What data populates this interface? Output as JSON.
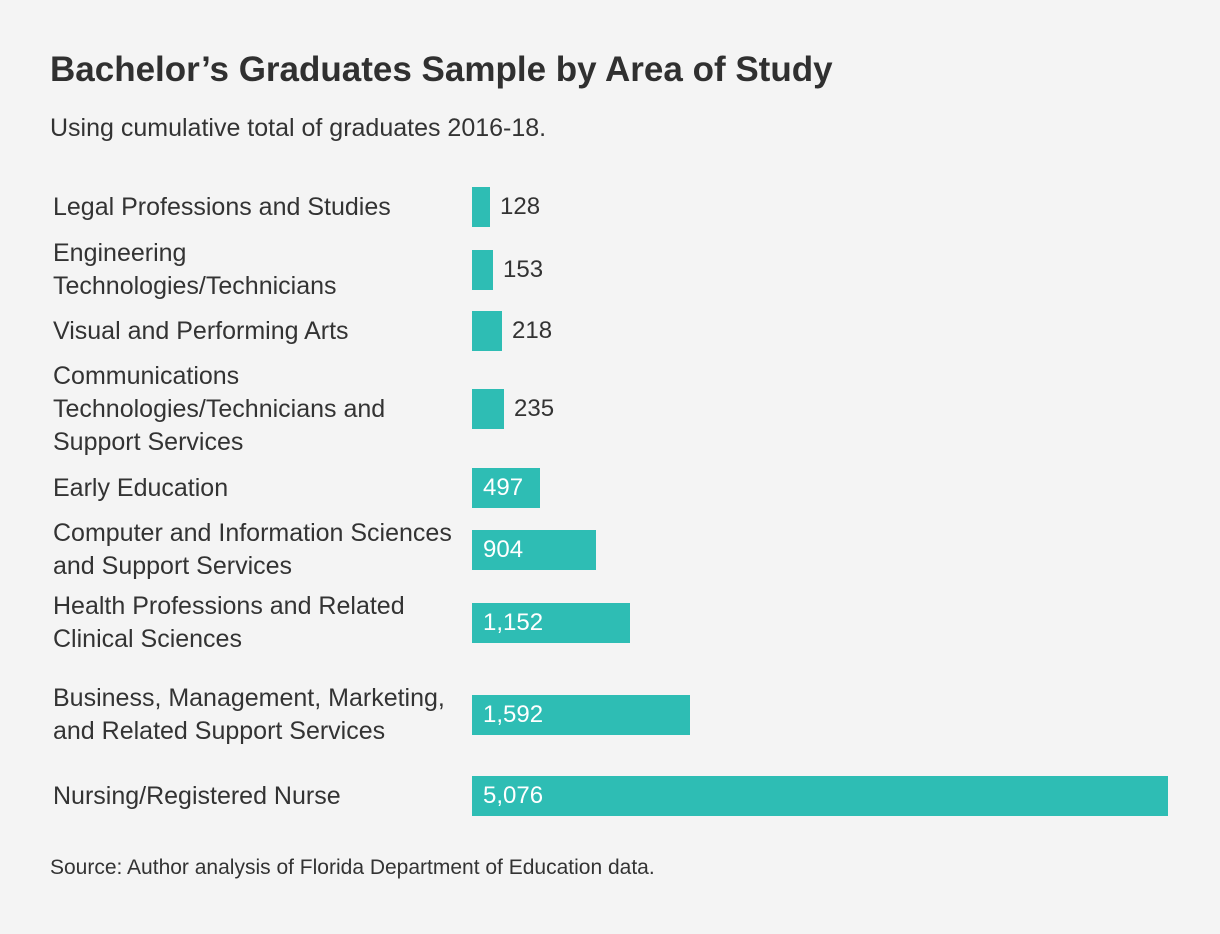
{
  "chart_data": {
    "type": "bar",
    "orientation": "horizontal",
    "title": "Bachelor’s Graduates Sample by Area of Study",
    "subtitle": "Using cumulative total of graduates 2016-18.",
    "source": "Source: Author analysis of Florida Department of Education data.",
    "xlabel": "",
    "ylabel": "",
    "xlim": [
      0,
      5076
    ],
    "grid": false,
    "bar_color": "#2ebdb4",
    "categories": [
      "Legal Professions and Studies",
      "Engineering Technologies/Technicians",
      "Visual and Performing Arts",
      "Communications Technologies/Technicians and Support Services",
      "Early Education",
      "Computer and Information Sciences and Support Services",
      "Health Professions and Related Clinical Sciences",
      "Business, Management, Marketing, and Related Support Services",
      "Nursing/Registered Nurse"
    ],
    "values": [
      128,
      153,
      218,
      235,
      497,
      904,
      1152,
      1592,
      5076
    ],
    "data_labels": [
      "128",
      "153",
      "218",
      "235",
      "497",
      "904",
      "1,152",
      "1,592",
      "5,076"
    ]
  }
}
